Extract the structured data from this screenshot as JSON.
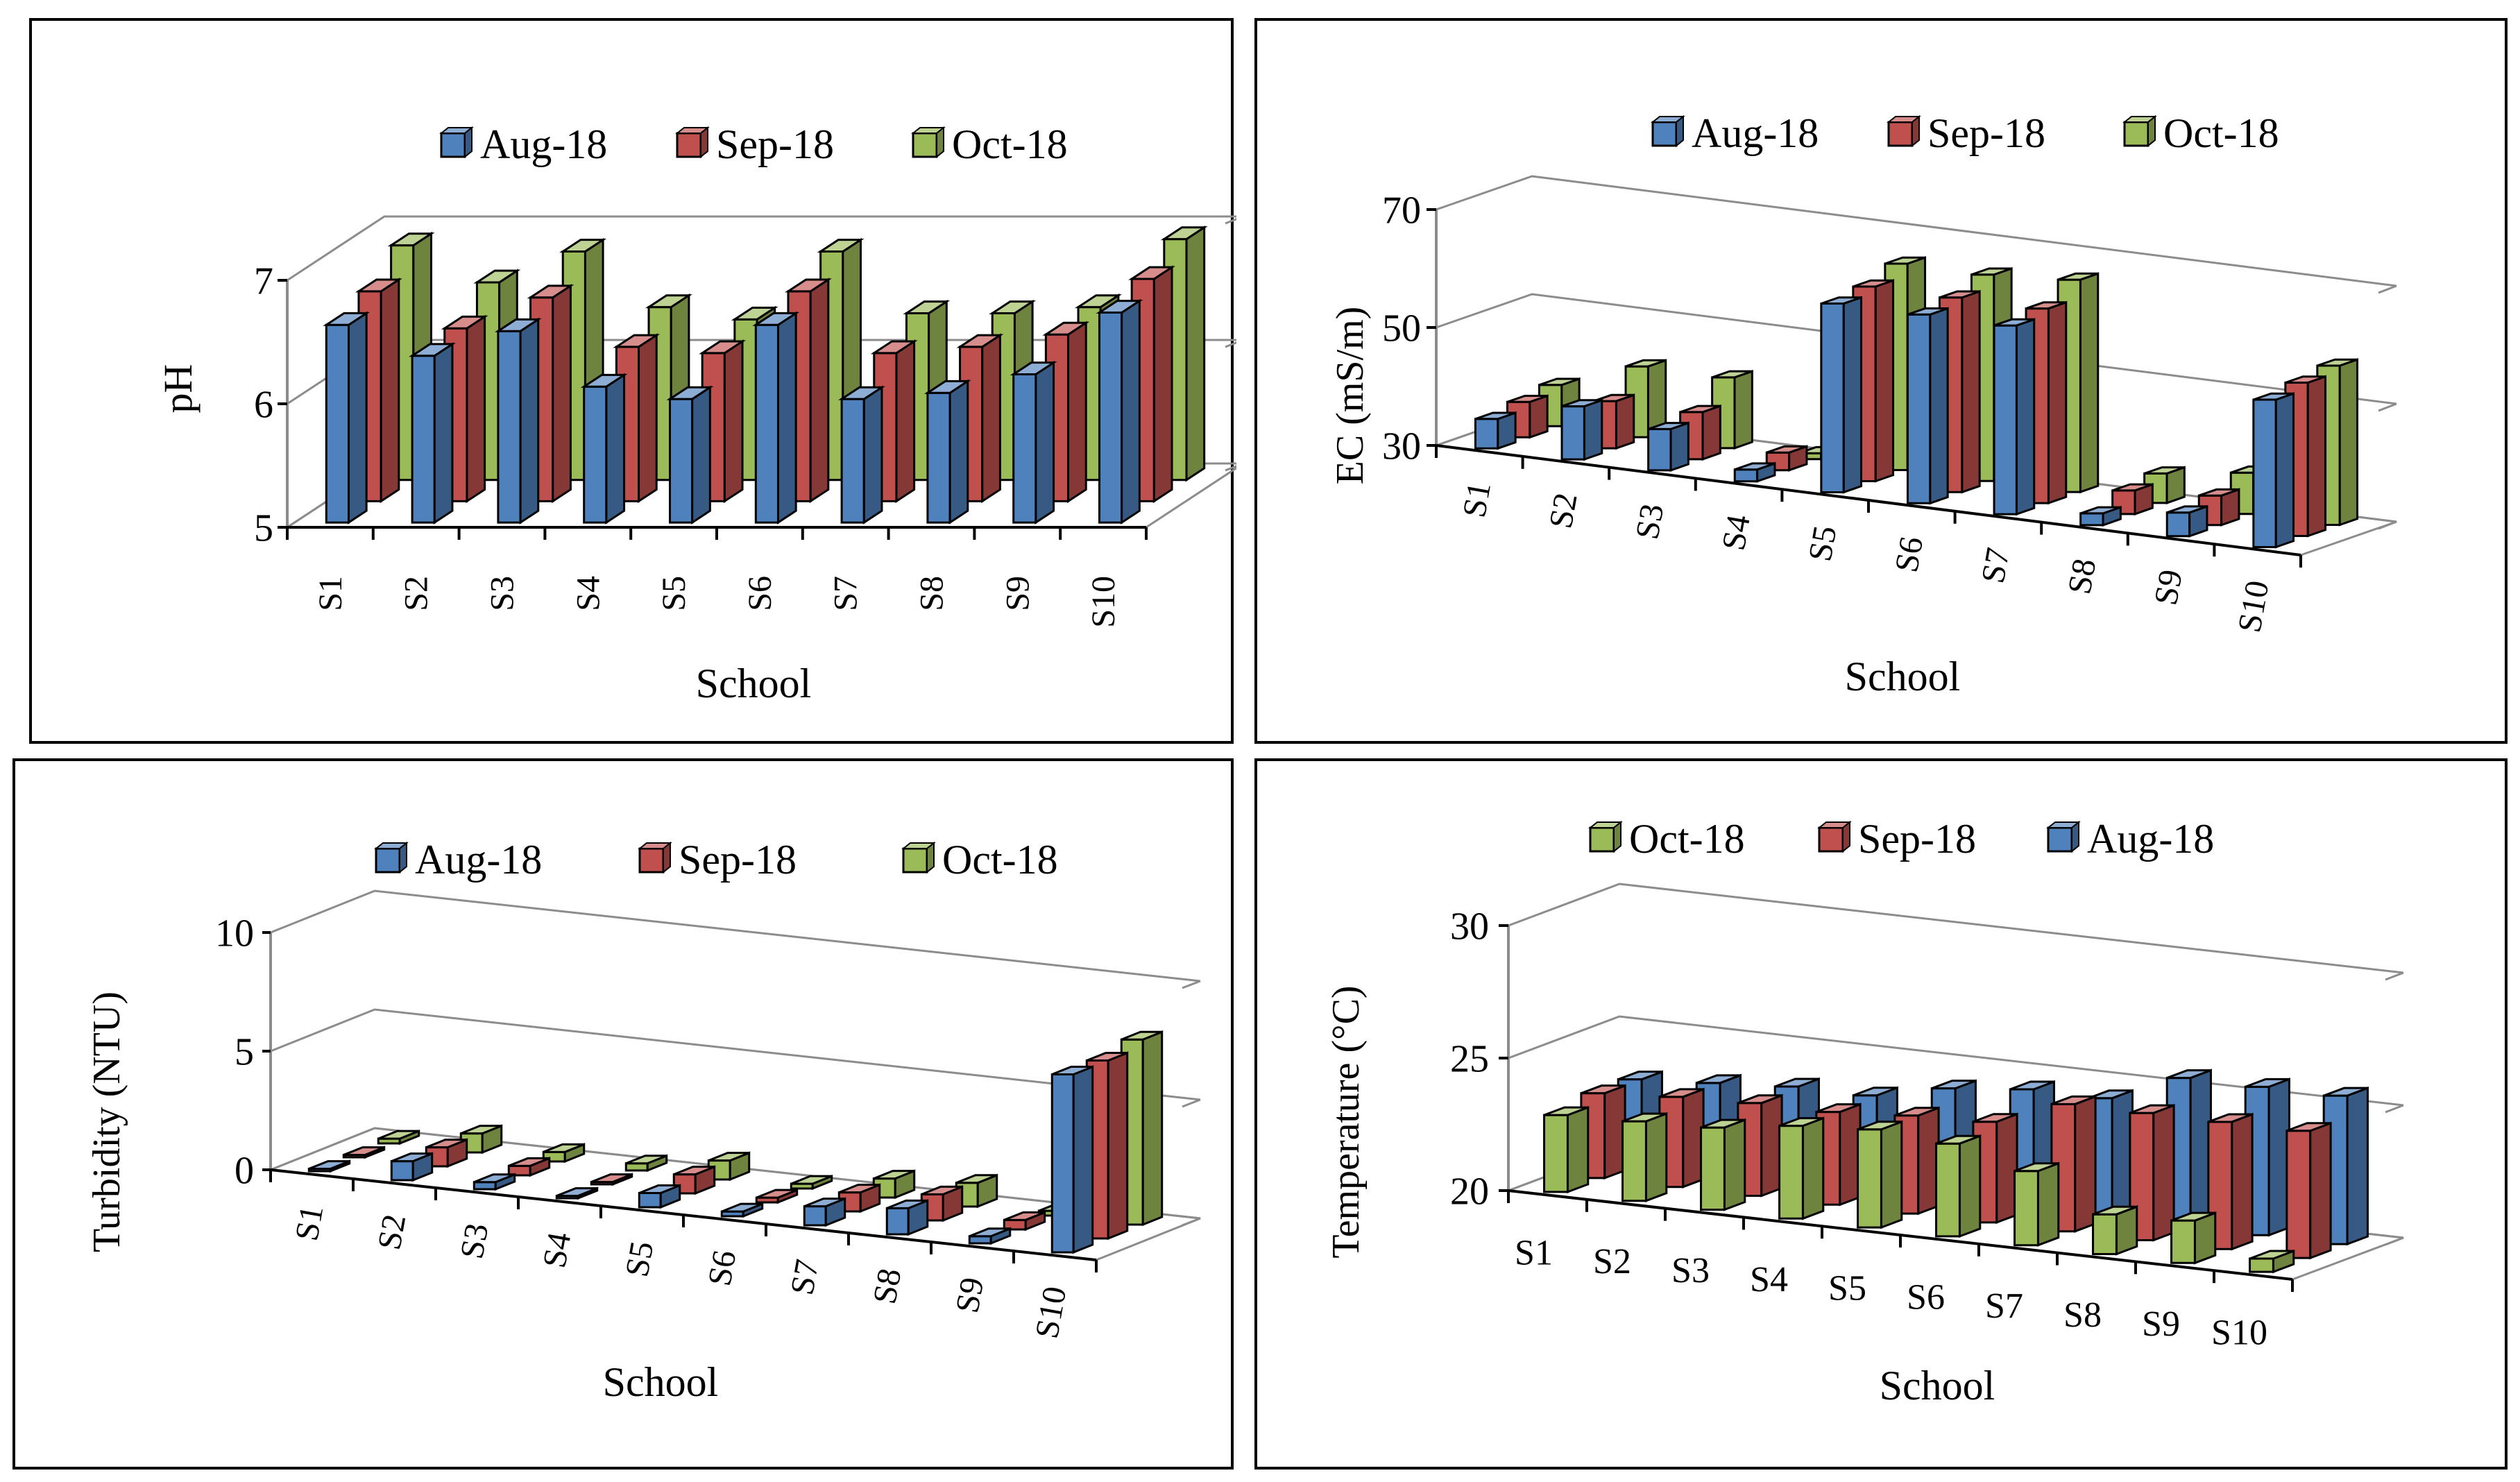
{
  "colors": {
    "Aug-18": "#4f81bd",
    "Sep-18": "#c0504d",
    "Oct-18": "#9bbb59"
  },
  "chart_data": [
    {
      "type": "bar",
      "categories": [
        "S1",
        "S2",
        "S3",
        "S4",
        "S5",
        "S6",
        "S7",
        "S8",
        "S9",
        "S10"
      ],
      "series": [
        {
          "name": "Aug-18",
          "values": [
            6.6,
            6.35,
            6.55,
            6.1,
            6.0,
            6.6,
            6.0,
            6.05,
            6.2,
            6.7
          ]
        },
        {
          "name": "Sep-18",
          "values": [
            6.7,
            6.4,
            6.65,
            6.25,
            6.2,
            6.7,
            6.2,
            6.25,
            6.35,
            6.8
          ]
        },
        {
          "name": "Oct-18",
          "values": [
            6.9,
            6.6,
            6.85,
            6.4,
            6.3,
            6.85,
            6.35,
            6.35,
            6.4,
            6.95
          ]
        }
      ],
      "legend_order": [
        "Aug-18",
        "Sep-18",
        "Oct-18"
      ],
      "xlabel": "School",
      "ylabel": "pH",
      "ylim": [
        5,
        7
      ],
      "yticks": [
        "5",
        "6",
        "7"
      ],
      "grid": true,
      "legend": "top"
    },
    {
      "type": "bar",
      "categories": [
        "S1",
        "S2",
        "S3",
        "S4",
        "S5",
        "S6",
        "S7",
        "S8",
        "S9",
        "S10"
      ],
      "series": [
        {
          "name": "Aug-18",
          "values": [
            35,
            39,
            37,
            32,
            62,
            62,
            62,
            32,
            34,
            55
          ]
        },
        {
          "name": "Sep-18",
          "values": [
            36,
            38,
            38,
            33,
            63,
            63,
            63,
            34,
            35,
            56
          ]
        },
        {
          "name": "Oct-18",
          "values": [
            37,
            42,
            42,
            31,
            65,
            65,
            66,
            35,
            37,
            57
          ]
        }
      ],
      "legend_order": [
        "Aug-18",
        "Sep-18",
        "Oct-18"
      ],
      "xlabel": "School",
      "ylabel": "EC (mS/m)",
      "ylim": [
        30,
        70
      ],
      "yticks": [
        "30",
        "50",
        "70"
      ],
      "grid": true,
      "legend": "top"
    },
    {
      "type": "bar",
      "categories": [
        "S1",
        "S2",
        "S3",
        "S4",
        "S5",
        "S6",
        "S7",
        "S8",
        "S9",
        "S10"
      ],
      "series": [
        {
          "name": "Aug-18",
          "values": [
            0.1,
            0.8,
            0.3,
            0.1,
            0.6,
            0.2,
            0.8,
            1.1,
            0.3,
            7.5
          ]
        },
        {
          "name": "Sep-18",
          "values": [
            0.1,
            0.8,
            0.4,
            0.1,
            0.8,
            0.2,
            0.8,
            1.1,
            0.4,
            7.5
          ]
        },
        {
          "name": "Oct-18",
          "values": [
            0.2,
            0.8,
            0.4,
            0.3,
            0.8,
            0.2,
            0.8,
            1.0,
            0.2,
            7.8
          ]
        }
      ],
      "legend_order": [
        "Aug-18",
        "Sep-18",
        "Oct-18"
      ],
      "xlabel": "School",
      "ylabel": "Turbidity (NTU)",
      "ylim": [
        0,
        10
      ],
      "yticks": [
        "0",
        "5",
        "10"
      ],
      "grid": true,
      "legend": "top"
    },
    {
      "type": "bar",
      "categories": [
        "S1",
        "S2",
        "S3",
        "S4",
        "S5",
        "S6",
        "S7",
        "S8",
        "S9",
        "S10"
      ],
      "series": [
        {
          "name": "Aug-18",
          "values": [
            23.2,
            23.4,
            23.6,
            23.6,
            24.2,
            24.5,
            24.5,
            25.6,
            25.6,
            25.6
          ]
        },
        {
          "name": "Sep-18",
          "values": [
            23.2,
            23.4,
            23.5,
            23.5,
            23.7,
            23.8,
            24.8,
            24.8,
            24.8,
            24.8
          ]
        },
        {
          "name": "Oct-18",
          "values": [
            22.9,
            23.0,
            23.1,
            23.5,
            23.7,
            23.5,
            22.8,
            21.5,
            21.6,
            20.5
          ]
        }
      ],
      "legend_order": [
        "Oct-18",
        "Sep-18",
        "Aug-18"
      ],
      "xlabel": "School",
      "ylabel": "Temperature (°C)",
      "ylim": [
        20,
        30
      ],
      "yticks": [
        "20",
        "25",
        "30"
      ],
      "grid": true,
      "legend": "top"
    }
  ]
}
